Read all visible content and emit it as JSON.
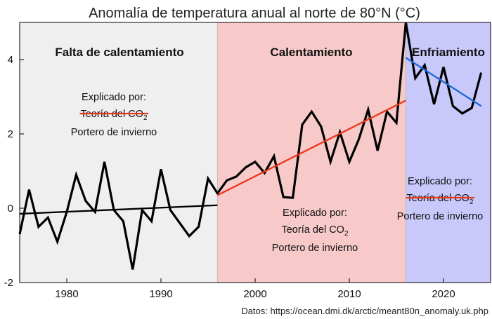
{
  "chart_data": {
    "type": "line",
    "title": "Anomalía de temperatura anual al norte de 80°N (°C)",
    "source": "Datos: https://ocean.dmi.dk/arctic/meant80n_anomaly.uk.php",
    "xlim": [
      1975,
      2025
    ],
    "ylim": [
      -2,
      5
    ],
    "xticks": [
      1980,
      1990,
      2000,
      2010,
      2020
    ],
    "yticks": [
      -2,
      0,
      2,
      4
    ],
    "x": [
      1975,
      1976,
      1977,
      1978,
      1979,
      1980,
      1981,
      1982,
      1983,
      1984,
      1985,
      1986,
      1987,
      1988,
      1989,
      1990,
      1991,
      1992,
      1993,
      1994,
      1995,
      1996,
      1997,
      1998,
      1999,
      2000,
      2001,
      2002,
      2003,
      2004,
      2005,
      2006,
      2007,
      2008,
      2009,
      2010,
      2011,
      2012,
      2013,
      2014,
      2015,
      2016,
      2017,
      2018,
      2019,
      2020,
      2021,
      2022,
      2023,
      2024
    ],
    "values": [
      -0.7,
      0.5,
      -0.5,
      -0.25,
      -0.9,
      -0.1,
      0.9,
      0.2,
      -0.1,
      1.25,
      -0.05,
      -0.35,
      -1.65,
      -0.05,
      -0.35,
      1.05,
      -0.05,
      -0.4,
      -0.75,
      -0.5,
      0.8,
      0.4,
      0.75,
      0.85,
      1.1,
      1.25,
      0.95,
      1.4,
      0.3,
      0.28,
      2.25,
      2.6,
      2.2,
      1.25,
      2.05,
      1.25,
      1.85,
      2.65,
      1.55,
      2.6,
      2.3,
      5.0,
      3.5,
      3.85,
      2.8,
      3.8,
      2.75,
      2.55,
      2.7,
      3.65
    ],
    "periods": [
      {
        "label": "Falta de calentamiento",
        "from": 1975,
        "to": 1996,
        "color": "#efefef"
      },
      {
        "label": "Calentamiento",
        "from": 1996,
        "to": 2016,
        "color": "#f7c9c9"
      },
      {
        "label": "Enfriamiento",
        "from": 2016,
        "to": 2025,
        "color": "#c8c8fb"
      }
    ],
    "trends": [
      {
        "x0": 1975,
        "y0": -0.15,
        "x1": 1996,
        "y1": 0.08,
        "color": "#000000"
      },
      {
        "x0": 1996,
        "y0": 0.35,
        "x1": 2016,
        "y1": 2.9,
        "color": "#e83a1a"
      },
      {
        "x0": 2016,
        "y0": 4.05,
        "x1": 2024,
        "y1": 2.75,
        "color": "#1f68d8"
      }
    ],
    "annotations": [
      {
        "header": "Explicado por:",
        "co2_a": "Teoría del CO",
        "co2_sub": "2",
        "winter": "Portero de invierno",
        "struck": true
      },
      {
        "header": "Explicado por:",
        "co2_a": "Teoría del CO",
        "co2_sub": "2",
        "winter": "Portero de invierno",
        "struck": false
      },
      {
        "header": "Explicado por:",
        "co2_a": "Teoría del CO",
        "co2_sub": "2",
        "winter": "Portero de invierno",
        "struck": true
      }
    ],
    "colors": {
      "line": "#000000",
      "strike": "#e83a1a"
    }
  }
}
